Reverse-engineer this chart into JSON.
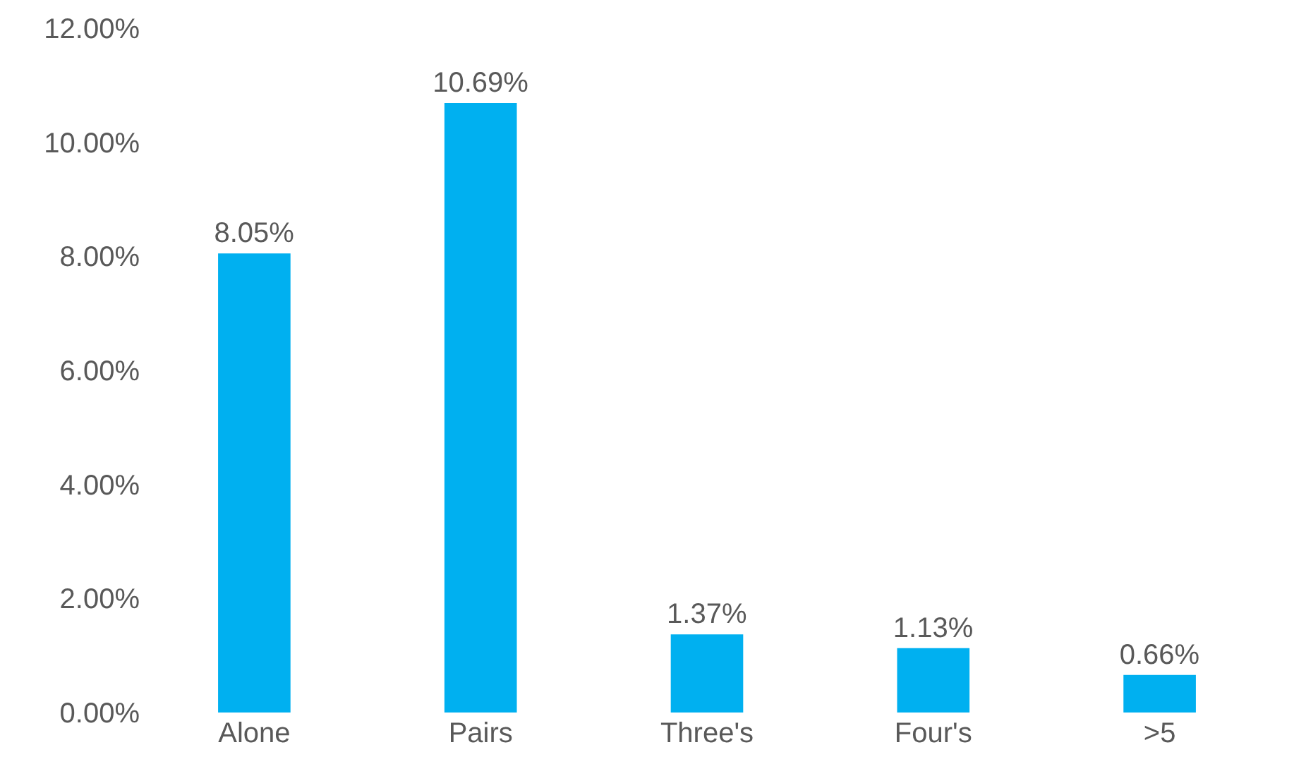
{
  "chart_data": {
    "type": "bar",
    "categories": [
      "Alone",
      "Pairs",
      "Three's",
      "Four's",
      ">5"
    ],
    "values": [
      8.05,
      10.69,
      1.37,
      1.13,
      0.66
    ],
    "value_labels": [
      "8.05%",
      "10.69%",
      "1.37%",
      "1.13%",
      "0.66%"
    ],
    "color": "#00b0f0",
    "ylim": [
      0,
      12
    ],
    "yticks": [
      {
        "value": 0,
        "label": "0.00%"
      },
      {
        "value": 2,
        "label": "2.00%"
      },
      {
        "value": 4,
        "label": "4.00%"
      },
      {
        "value": 6,
        "label": "6.00%"
      },
      {
        "value": 8,
        "label": "8.00%"
      },
      {
        "value": 10,
        "label": "10.00%"
      },
      {
        "value": 12,
        "label": "12.00%"
      }
    ],
    "grid": false
  }
}
